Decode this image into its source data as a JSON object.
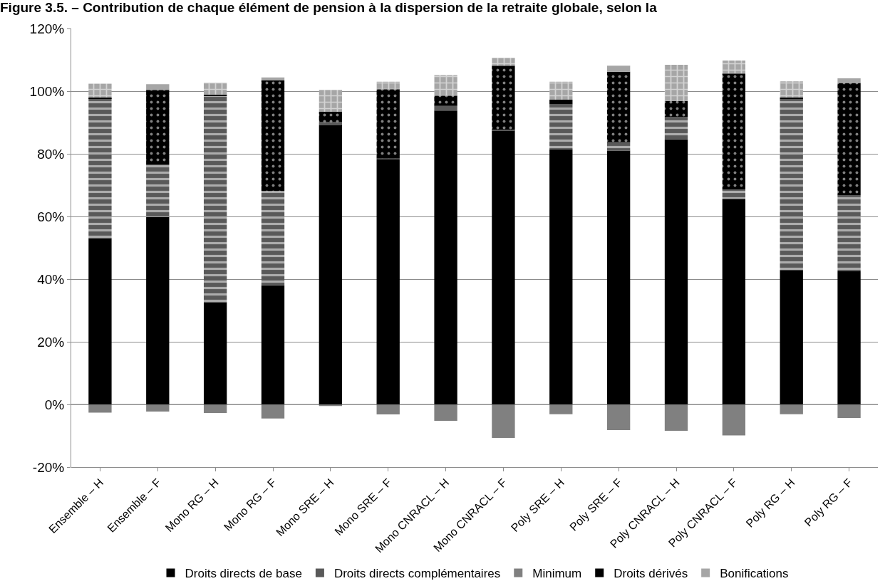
{
  "chart_data": {
    "type": "bar",
    "stacked": true,
    "title": "Figure 3.5. – Contribution de chaque élément de pension à la dispersion de la retraite globale, selon la",
    "categories": [
      "Ensemble – H",
      "Ensemble – F",
      "Mono RG – H",
      "Mono RG – F",
      "Mono SRE – H",
      "Mono SRE – F",
      "Mono CNRACL – H",
      "Mono CNRACL – F",
      "Poly SRE – H",
      "Poly SRE – F",
      "Poly CNRACL – H",
      "Poly CNRACL – F",
      "Poly RG – H",
      "Poly RG – F"
    ],
    "series": [
      {
        "name": "Droits directs de base",
        "color": "#000000",
        "values": [
          53.0,
          59.8,
          32.6,
          38.0,
          89.1,
          78.2,
          93.8,
          87.4,
          81.5,
          81.0,
          84.6,
          65.6,
          42.9,
          42.5
        ]
      },
      {
        "name": "Droits directs complémentaires",
        "color": "#595959",
        "values": [
          44.7,
          16.8,
          66.0,
          30.1,
          1.0,
          0.4,
          1.5,
          0.3,
          14.3,
          2.7,
          7.2,
          3.0,
          54.5,
          24.2
        ]
      },
      {
        "name": "Minimum",
        "color": "#808080",
        "values": [
          -2.6,
          -2.3,
          -2.7,
          -4.5,
          -0.5,
          -3.2,
          -5.2,
          -10.7,
          -3.1,
          -8.2,
          -8.4,
          -9.9,
          -3.1,
          -4.3
        ]
      },
      {
        "name": "Droits dérivés",
        "color": "#000000",
        "values": [
          0.3,
          23.8,
          0.3,
          35.3,
          3.3,
          22.0,
          3.3,
          20.4,
          1.5,
          22.5,
          5.1,
          37.0,
          0.6,
          35.9
        ]
      },
      {
        "name": "Bonifications",
        "color": "#a6a6a6",
        "values": [
          4.4,
          1.8,
          3.8,
          1.0,
          7.0,
          2.4,
          6.5,
          2.5,
          5.7,
          1.9,
          11.5,
          4.2,
          5.1,
          1.5
        ]
      }
    ],
    "ylim": [
      -20,
      120
    ],
    "yticks": [
      {
        "value": -20,
        "label": "-20%"
      },
      {
        "value": 0,
        "label": "0%"
      },
      {
        "value": 20,
        "label": "20%"
      },
      {
        "value": 40,
        "label": "40%"
      },
      {
        "value": 60,
        "label": "60%"
      },
      {
        "value": 80,
        "label": "80%"
      },
      {
        "value": 100,
        "label": "100%"
      },
      {
        "value": 120,
        "label": "120%"
      }
    ],
    "grid": "y",
    "legend": "bottom"
  }
}
